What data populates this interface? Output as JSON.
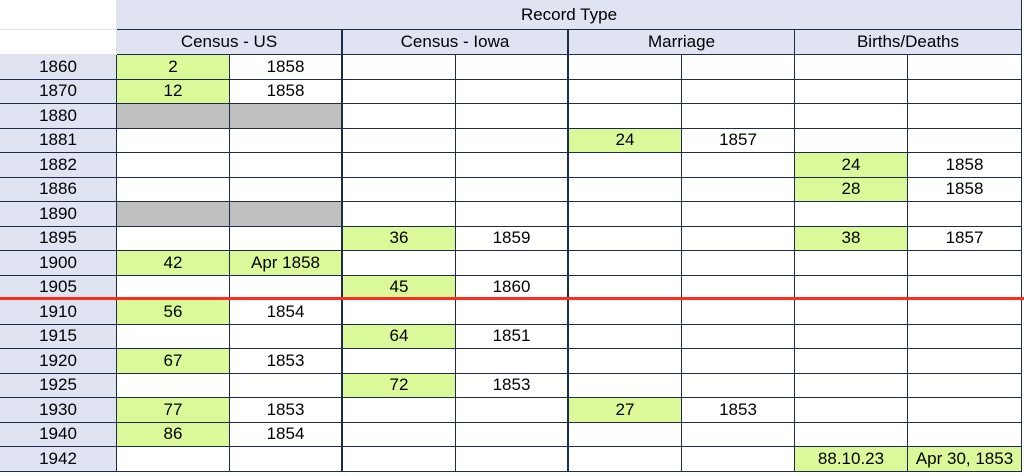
{
  "header": {
    "record_type": "Record Type",
    "groups": [
      "Census - US",
      "Census - Iowa",
      "Marriage",
      "Births/Deaths"
    ]
  },
  "colors": {
    "header_bg": "#dfe3f2",
    "highlight": "#dcf99a",
    "unavailable": "#c0c0c0",
    "divider": "#ff2b1c"
  },
  "rows": [
    {
      "year": "1860",
      "cells": [
        {
          "v": "2",
          "s": "g"
        },
        {
          "v": "1858",
          "s": ""
        },
        {
          "v": "",
          "s": ""
        },
        {
          "v": "",
          "s": ""
        },
        {
          "v": "",
          "s": ""
        },
        {
          "v": "",
          "s": ""
        },
        {
          "v": "",
          "s": ""
        },
        {
          "v": "",
          "s": ""
        }
      ]
    },
    {
      "year": "1870",
      "cells": [
        {
          "v": "12",
          "s": "g"
        },
        {
          "v": "1858",
          "s": ""
        },
        {
          "v": "",
          "s": ""
        },
        {
          "v": "",
          "s": ""
        },
        {
          "v": "",
          "s": ""
        },
        {
          "v": "",
          "s": ""
        },
        {
          "v": "",
          "s": ""
        },
        {
          "v": "",
          "s": ""
        }
      ]
    },
    {
      "year": "1880",
      "cells": [
        {
          "v": "",
          "s": "x"
        },
        {
          "v": "",
          "s": "x"
        },
        {
          "v": "",
          "s": ""
        },
        {
          "v": "",
          "s": ""
        },
        {
          "v": "",
          "s": ""
        },
        {
          "v": "",
          "s": ""
        },
        {
          "v": "",
          "s": ""
        },
        {
          "v": "",
          "s": ""
        }
      ]
    },
    {
      "year": "1881",
      "cells": [
        {
          "v": "",
          "s": ""
        },
        {
          "v": "",
          "s": ""
        },
        {
          "v": "",
          "s": ""
        },
        {
          "v": "",
          "s": ""
        },
        {
          "v": "24",
          "s": "g"
        },
        {
          "v": "1857",
          "s": ""
        },
        {
          "v": "",
          "s": ""
        },
        {
          "v": "",
          "s": ""
        }
      ]
    },
    {
      "year": "1882",
      "cells": [
        {
          "v": "",
          "s": ""
        },
        {
          "v": "",
          "s": ""
        },
        {
          "v": "",
          "s": ""
        },
        {
          "v": "",
          "s": ""
        },
        {
          "v": "",
          "s": ""
        },
        {
          "v": "",
          "s": ""
        },
        {
          "v": "24",
          "s": "g"
        },
        {
          "v": "1858",
          "s": ""
        }
      ]
    },
    {
      "year": "1886",
      "cells": [
        {
          "v": "",
          "s": ""
        },
        {
          "v": "",
          "s": ""
        },
        {
          "v": "",
          "s": ""
        },
        {
          "v": "",
          "s": ""
        },
        {
          "v": "",
          "s": ""
        },
        {
          "v": "",
          "s": ""
        },
        {
          "v": "28",
          "s": "g"
        },
        {
          "v": "1858",
          "s": ""
        }
      ]
    },
    {
      "year": "1890",
      "cells": [
        {
          "v": "",
          "s": "x"
        },
        {
          "v": "",
          "s": "x"
        },
        {
          "v": "",
          "s": ""
        },
        {
          "v": "",
          "s": ""
        },
        {
          "v": "",
          "s": ""
        },
        {
          "v": "",
          "s": ""
        },
        {
          "v": "",
          "s": ""
        },
        {
          "v": "",
          "s": ""
        }
      ]
    },
    {
      "year": "1895",
      "cells": [
        {
          "v": "",
          "s": ""
        },
        {
          "v": "",
          "s": ""
        },
        {
          "v": "36",
          "s": "g"
        },
        {
          "v": "1859",
          "s": ""
        },
        {
          "v": "",
          "s": ""
        },
        {
          "v": "",
          "s": ""
        },
        {
          "v": "38",
          "s": "g"
        },
        {
          "v": "1857",
          "s": ""
        }
      ]
    },
    {
      "year": "1900",
      "cells": [
        {
          "v": "42",
          "s": "g"
        },
        {
          "v": "Apr 1858",
          "s": "g"
        },
        {
          "v": "",
          "s": ""
        },
        {
          "v": "",
          "s": ""
        },
        {
          "v": "",
          "s": ""
        },
        {
          "v": "",
          "s": ""
        },
        {
          "v": "",
          "s": ""
        },
        {
          "v": "",
          "s": ""
        }
      ]
    },
    {
      "year": "1905",
      "cells": [
        {
          "v": "",
          "s": ""
        },
        {
          "v": "",
          "s": ""
        },
        {
          "v": "45",
          "s": "g"
        },
        {
          "v": "1860",
          "s": ""
        },
        {
          "v": "",
          "s": ""
        },
        {
          "v": "",
          "s": ""
        },
        {
          "v": "",
          "s": ""
        },
        {
          "v": "",
          "s": ""
        }
      ]
    },
    {
      "year": "1910",
      "cells": [
        {
          "v": "56",
          "s": "g"
        },
        {
          "v": "1854",
          "s": ""
        },
        {
          "v": "",
          "s": ""
        },
        {
          "v": "",
          "s": ""
        },
        {
          "v": "",
          "s": ""
        },
        {
          "v": "",
          "s": ""
        },
        {
          "v": "",
          "s": ""
        },
        {
          "v": "",
          "s": ""
        }
      ]
    },
    {
      "year": "1915",
      "cells": [
        {
          "v": "",
          "s": ""
        },
        {
          "v": "",
          "s": ""
        },
        {
          "v": "64",
          "s": "g"
        },
        {
          "v": "1851",
          "s": ""
        },
        {
          "v": "",
          "s": ""
        },
        {
          "v": "",
          "s": ""
        },
        {
          "v": "",
          "s": ""
        },
        {
          "v": "",
          "s": ""
        }
      ]
    },
    {
      "year": "1920",
      "cells": [
        {
          "v": "67",
          "s": "g"
        },
        {
          "v": "1853",
          "s": ""
        },
        {
          "v": "",
          "s": ""
        },
        {
          "v": "",
          "s": ""
        },
        {
          "v": "",
          "s": ""
        },
        {
          "v": "",
          "s": ""
        },
        {
          "v": "",
          "s": ""
        },
        {
          "v": "",
          "s": ""
        }
      ]
    },
    {
      "year": "1925",
      "cells": [
        {
          "v": "",
          "s": ""
        },
        {
          "v": "",
          "s": ""
        },
        {
          "v": "72",
          "s": "g"
        },
        {
          "v": "1853",
          "s": ""
        },
        {
          "v": "",
          "s": ""
        },
        {
          "v": "",
          "s": ""
        },
        {
          "v": "",
          "s": ""
        },
        {
          "v": "",
          "s": ""
        }
      ]
    },
    {
      "year": "1930",
      "cells": [
        {
          "v": "77",
          "s": "g"
        },
        {
          "v": "1853",
          "s": ""
        },
        {
          "v": "",
          "s": ""
        },
        {
          "v": "",
          "s": ""
        },
        {
          "v": "27",
          "s": "g"
        },
        {
          "v": "1853",
          "s": ""
        },
        {
          "v": "",
          "s": ""
        },
        {
          "v": "",
          "s": ""
        }
      ]
    },
    {
      "year": "1940",
      "cells": [
        {
          "v": "86",
          "s": "g"
        },
        {
          "v": "1854",
          "s": ""
        },
        {
          "v": "",
          "s": ""
        },
        {
          "v": "",
          "s": ""
        },
        {
          "v": "",
          "s": ""
        },
        {
          "v": "",
          "s": ""
        },
        {
          "v": "",
          "s": ""
        },
        {
          "v": "",
          "s": ""
        }
      ]
    },
    {
      "year": "1942",
      "cells": [
        {
          "v": "",
          "s": ""
        },
        {
          "v": "",
          "s": ""
        },
        {
          "v": "",
          "s": ""
        },
        {
          "v": "",
          "s": ""
        },
        {
          "v": "",
          "s": ""
        },
        {
          "v": "",
          "s": ""
        },
        {
          "v": "88.10.23",
          "s": "g"
        },
        {
          "v": "Apr 30, 1853",
          "s": "g"
        }
      ]
    }
  ]
}
